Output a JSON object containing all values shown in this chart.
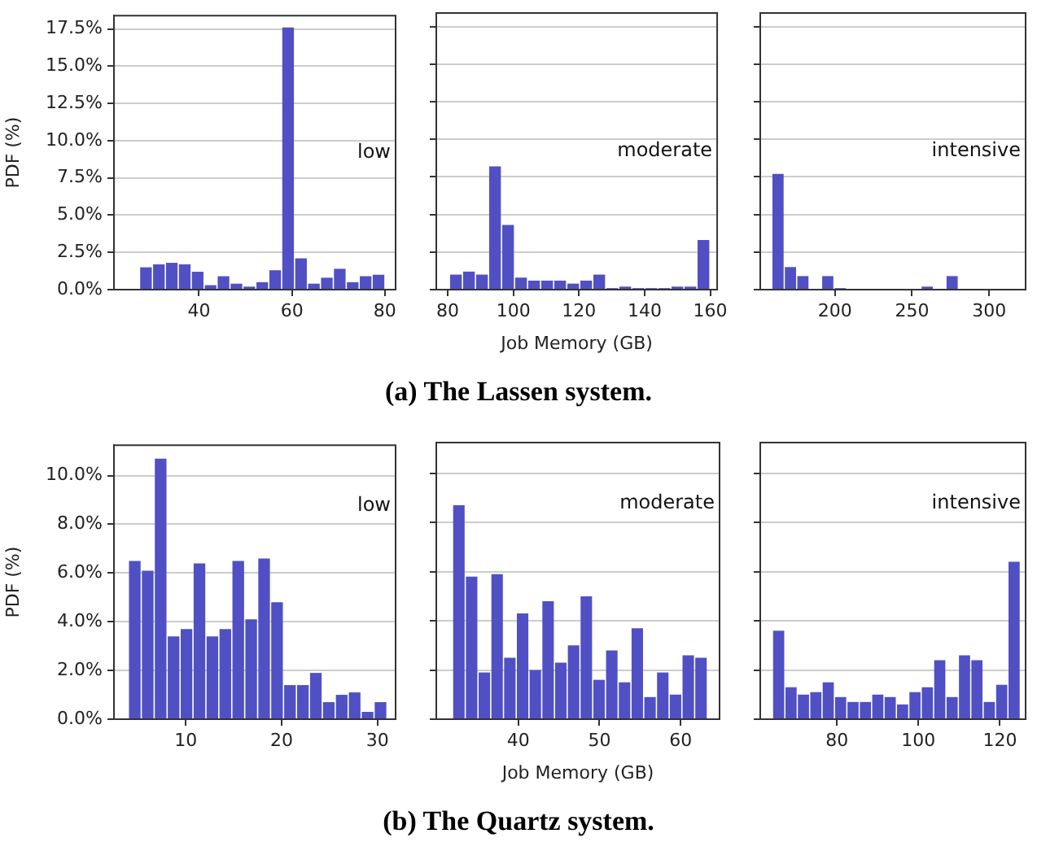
{
  "chart_data": [
    {
      "type": "histogram",
      "ylabel": "PDF (%)",
      "annotations": [
        "low",
        "(a) The Lassen system."
      ],
      "color": "#5050c4",
      "grid": "y",
      "xlim": [
        21.7,
        82.3
      ],
      "xticks": [
        40,
        60,
        80
      ],
      "ylim": [
        0,
        18.4
      ],
      "yticks": [
        {
          "value": 0,
          "label": "0.0%"
        },
        {
          "value": 2.5,
          "label": "2.5%"
        },
        {
          "value": 5,
          "label": "5.0%"
        },
        {
          "value": 7.5,
          "label": "7.5%"
        },
        {
          "value": 10,
          "label": "10.0%"
        },
        {
          "value": 12.5,
          "label": "12.5%"
        },
        {
          "value": 15,
          "label": "15.0%"
        },
        {
          "value": 17.5,
          "label": "17.5%"
        }
      ],
      "bins": [
        27.2,
        29.98,
        32.76,
        35.54,
        38.32,
        41.1,
        43.88,
        46.66,
        49.44,
        52.22,
        55,
        57.78,
        60.56,
        63.34,
        66.12,
        68.9,
        71.68,
        74.46,
        77.24,
        80.02
      ],
      "values": [
        1.5,
        1.7,
        1.8,
        1.7,
        1.2,
        0.3,
        0.9,
        0.4,
        0.2,
        0.5,
        1.3,
        17.6,
        2.1,
        0.4,
        0.8,
        1.4,
        0.5,
        0.9,
        1.0
      ]
    },
    {
      "type": "histogram",
      "xlabel": "Job Memory (GB)",
      "annotations": [
        "moderate"
      ],
      "color": "#5050c4",
      "grid": "y",
      "tick_labels": "x",
      "xlim": [
        76.5,
        162.1
      ],
      "xticks": [
        80,
        100,
        120,
        140,
        160
      ],
      "ylim": [
        0,
        18.4
      ],
      "yticks": [
        0,
        2.5,
        5,
        7.5,
        10,
        12.5,
        15,
        17.5
      ],
      "bins": [
        80.5,
        84.47,
        88.44,
        92.41,
        96.38,
        100.35,
        104.32,
        108.29,
        112.26,
        116.23,
        120.2,
        124.17,
        128.14,
        132.11,
        136.08,
        140.05,
        144.02,
        147.99,
        151.96,
        155.93,
        159.9
      ],
      "values": [
        1.0,
        1.2,
        1.0,
        8.2,
        4.3,
        0.8,
        0.6,
        0.6,
        0.6,
        0.4,
        0.6,
        1.0,
        0.1,
        0.2,
        0.1,
        0.1,
        0.1,
        0.2,
        0.2,
        3.3
      ]
    },
    {
      "type": "histogram",
      "annotations": [
        "intensive"
      ],
      "color": "#5050c4",
      "grid": "y",
      "tick_labels": "x",
      "xlim": [
        151.5,
        323.7
      ],
      "xticks": [
        200,
        250,
        300
      ],
      "ylim": [
        0,
        18.4
      ],
      "yticks": [
        0,
        2.5,
        5,
        7.5,
        10,
        12.5,
        15,
        17.5
      ],
      "bins": [
        159,
        167.07,
        175.14,
        183.21,
        191.28,
        199.35,
        207.42,
        215.49,
        223.56,
        231.63,
        239.7,
        247.77,
        255.84,
        263.91,
        271.98,
        280.05
      ],
      "values": [
        7.7,
        1.5,
        0.9,
        0,
        0.9,
        0.1,
        0,
        0,
        0,
        0,
        0,
        0,
        0.2,
        0,
        0.9
      ]
    },
    {
      "type": "histogram",
      "ylabel": "PDF (%)",
      "annotations": [
        "low",
        "(b) The Quartz system."
      ],
      "color": "#5050c4",
      "grid": "y",
      "xlim": [
        2.5,
        31.9
      ],
      "xticks": [
        10,
        20,
        30
      ],
      "ylim": [
        0,
        11.25
      ],
      "yticks": [
        {
          "value": 0,
          "label": "0.0%"
        },
        {
          "value": 2,
          "label": "2.0%"
        },
        {
          "value": 4,
          "label": "4.0%"
        },
        {
          "value": 6,
          "label": "6.0%"
        },
        {
          "value": 8,
          "label": "8.0%"
        },
        {
          "value": 10,
          "label": "10.0%"
        }
      ],
      "bins": [
        4,
        5.35,
        6.7,
        8.05,
        9.4,
        10.75,
        12.1,
        13.45,
        14.8,
        16.15,
        17.5,
        18.85,
        20.2,
        21.55,
        22.9,
        24.25,
        25.6,
        26.95,
        28.3,
        29.65,
        31
      ],
      "values": [
        6.5,
        6.1,
        10.7,
        3.4,
        3.7,
        6.4,
        3.4,
        3.7,
        6.5,
        4.1,
        6.6,
        4.8,
        1.4,
        1.4,
        1.9,
        0.7,
        1.0,
        1.1,
        0.3,
        0.7
      ]
    },
    {
      "type": "histogram",
      "xlabel": "Job Memory (GB)",
      "annotations": [
        "moderate"
      ],
      "color": "#5050c4",
      "grid": "y",
      "tick_labels": "x",
      "xlim": [
        29.9,
        64.8
      ],
      "xticks": [
        40,
        50,
        60
      ],
      "ylim": [
        0,
        11.25
      ],
      "yticks": [
        0,
        2,
        4,
        6,
        8,
        10
      ],
      "bins": [
        31.9,
        33.47,
        35.04,
        36.61,
        38.18,
        39.75,
        41.32,
        42.89,
        44.46,
        46.03,
        47.6,
        49.17,
        50.74,
        52.31,
        53.88,
        55.45,
        57.02,
        58.59,
        60.16,
        61.73,
        63.3
      ],
      "values": [
        8.7,
        5.8,
        1.9,
        5.9,
        2.5,
        4.3,
        2.0,
        4.8,
        2.3,
        3.0,
        5.0,
        1.6,
        2.8,
        1.5,
        3.7,
        0.9,
        1.9,
        1.0,
        2.6,
        2.5
      ]
    },
    {
      "type": "histogram",
      "annotations": [
        "intensive"
      ],
      "color": "#5050c4",
      "grid": "y",
      "tick_labels": "x",
      "xlim": [
        61.2,
        126.3
      ],
      "xticks": [
        80,
        100,
        120
      ],
      "ylim": [
        0,
        11.25
      ],
      "yticks": [
        0,
        2,
        4,
        6,
        8,
        10
      ],
      "bins": [
        64.2,
        67.24,
        70.28,
        73.32,
        76.36,
        79.4,
        82.44,
        85.48,
        88.52,
        91.56,
        94.6,
        97.64,
        100.68,
        103.72,
        106.76,
        109.8,
        112.84,
        115.88,
        118.92,
        121.96,
        125.0
      ],
      "values": [
        3.6,
        1.3,
        1.0,
        1.1,
        1.5,
        0.9,
        0.7,
        0.7,
        1.0,
        0.9,
        0.6,
        1.1,
        1.3,
        2.4,
        0.9,
        2.6,
        2.4,
        0.7,
        1.4,
        6.4
      ]
    }
  ]
}
